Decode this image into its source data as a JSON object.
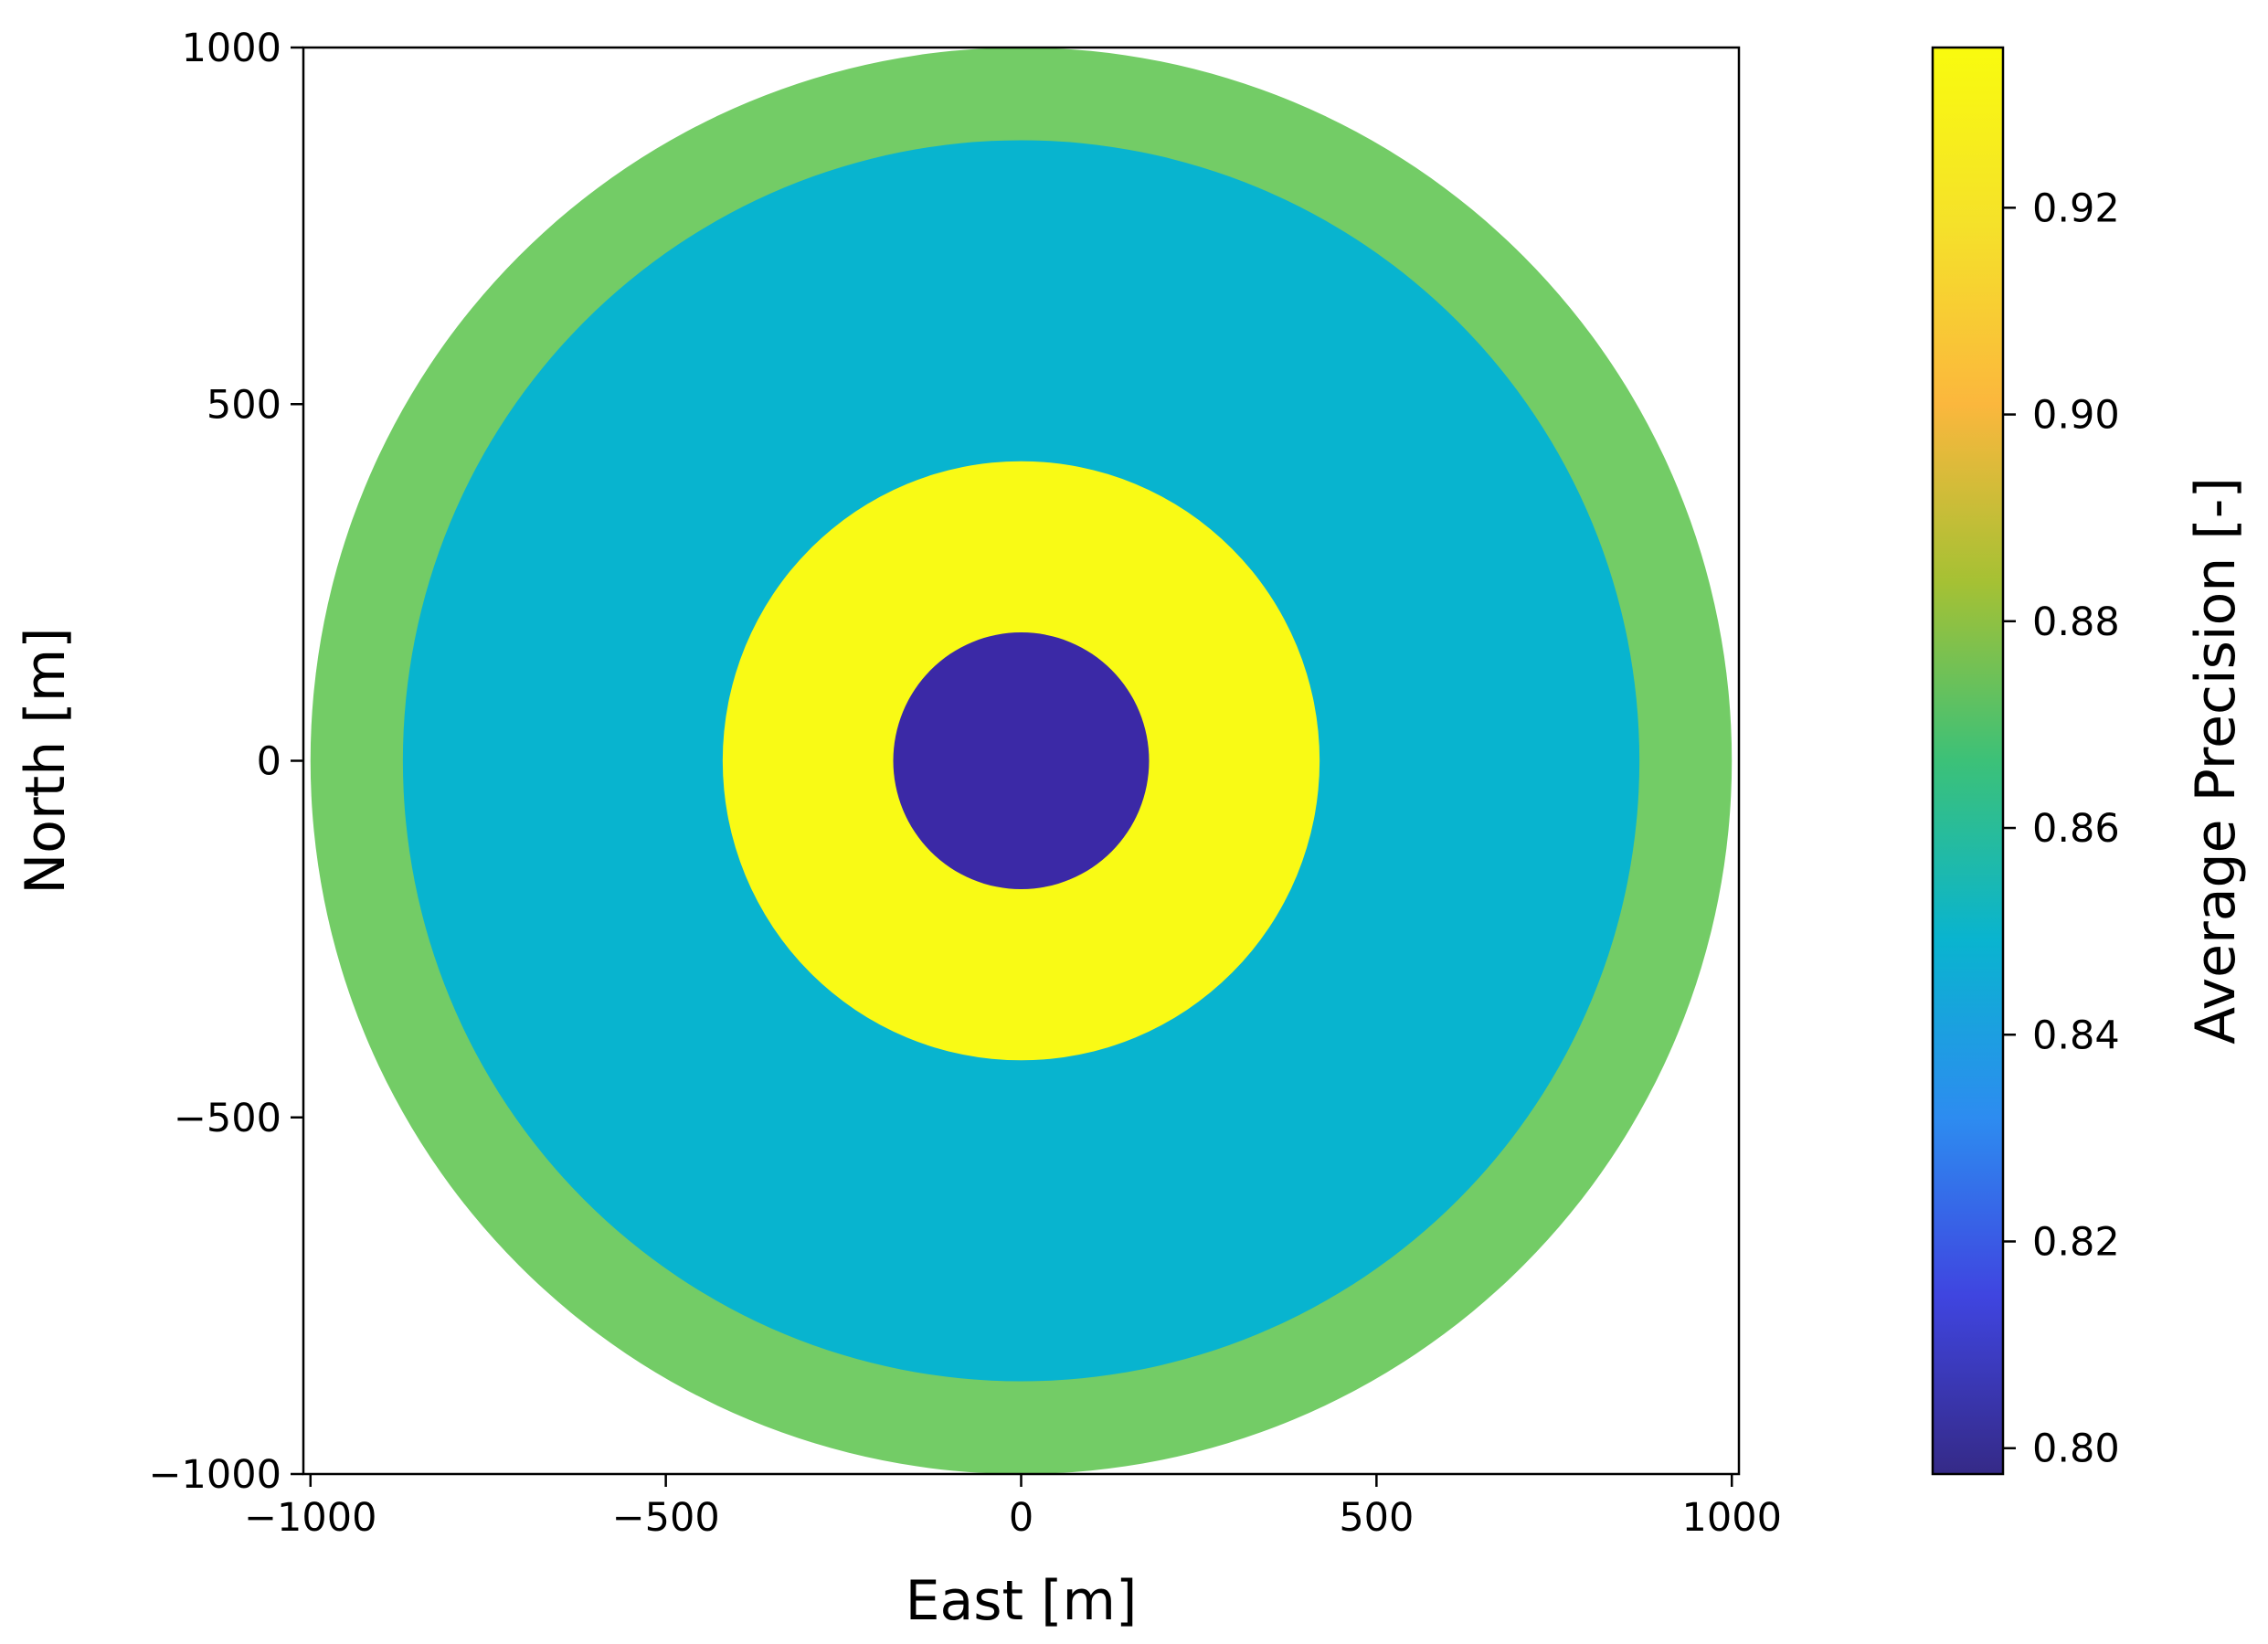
{
  "chart_data": {
    "type": "heatmap",
    "title": "",
    "xlabel": "East [m]",
    "ylabel": "North [m]",
    "xlim": [
      -1010,
      1010
    ],
    "ylim": [
      -1000,
      1000
    ],
    "xticks": [
      -1000,
      -500,
      0,
      500,
      1000
    ],
    "xtick_labels": [
      "−1000",
      "−500",
      "0",
      "500",
      "1000"
    ],
    "yticks": [
      -1000,
      -500,
      0,
      500,
      1000
    ],
    "ytick_labels": [
      "−1000",
      "−500",
      "0",
      "500",
      "1000"
    ],
    "grid": false,
    "rings": [
      {
        "inner_radius": 870,
        "outer_radius": 1000,
        "value": 0.884,
        "color": "#73cc66"
      },
      {
        "inner_radius": 420,
        "outer_radius": 870,
        "value": 0.861,
        "color": "#08b4cf"
      },
      {
        "inner_radius": 180,
        "outer_radius": 420,
        "value": 0.936,
        "color": "#f9fa15"
      },
      {
        "inner_radius": 0,
        "outer_radius": 180,
        "value": 0.798,
        "color": "#3b29a6"
      }
    ],
    "colorbar": {
      "label": "Average Precision [-]",
      "range": [
        0.7975,
        0.9355
      ],
      "ticks": [
        0.8,
        0.82,
        0.84,
        0.86,
        0.88,
        0.9,
        0.92
      ],
      "tick_labels": [
        "0.80",
        "0.82",
        "0.84",
        "0.86",
        "0.88",
        "0.90",
        "0.92"
      ],
      "colormap": [
        "#352a87",
        "#3f45e0",
        "#2d8cf0",
        "#09b4cf",
        "#3cc178",
        "#a5c134",
        "#fbb73d",
        "#f5e12a",
        "#f9fb0e"
      ]
    }
  }
}
